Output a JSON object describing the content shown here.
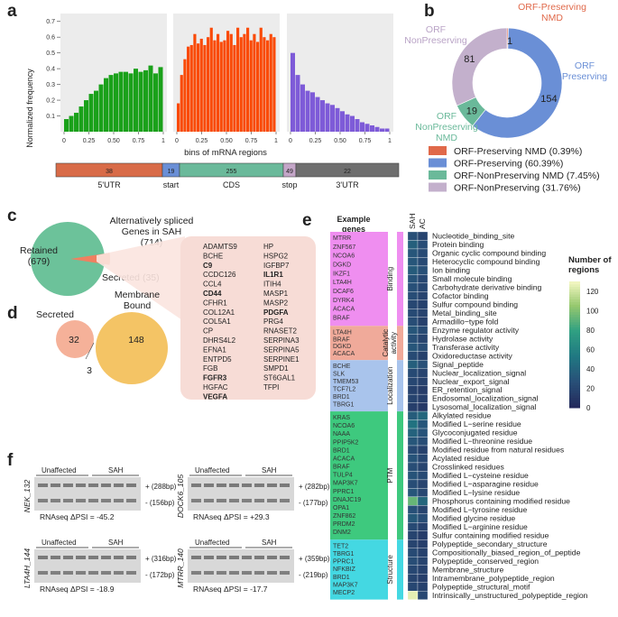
{
  "panel_labels": {
    "a": "a",
    "b": "b",
    "c": "c",
    "d": "d",
    "e": "e",
    "f": "f"
  },
  "panel_a": {
    "ylabel": "Normalized frequency",
    "xlabel": "bins of mRNA regions",
    "yticks": [
      "0.1",
      "0.2",
      "0.3",
      "0.4",
      "0.5",
      "0.6",
      "0.7"
    ],
    "xticks": [
      "0",
      "0.25",
      "0.50",
      "0.75",
      "1"
    ],
    "bar_segments": [
      {
        "label": "5'UTR",
        "count": "38",
        "color": "#d86b48"
      },
      {
        "label": "start",
        "count": "19",
        "color": "#6a8fd6"
      },
      {
        "label": "CDS",
        "count": "255",
        "color": "#6ab99a"
      },
      {
        "label": "stop",
        "count": "49",
        "color": "#c4a6c8"
      },
      {
        "label": "3'UTR",
        "count": "22",
        "color": "#6e6e6e"
      }
    ]
  },
  "chart_data": [
    {
      "type": "bar",
      "title": "",
      "region": "5'UTR",
      "color": "#1aa11a",
      "ylim": [
        0,
        0.75
      ],
      "values": [
        0.08,
        0.1,
        0.12,
        0.16,
        0.2,
        0.24,
        0.26,
        0.3,
        0.34,
        0.36,
        0.37,
        0.38,
        0.38,
        0.37,
        0.4,
        0.38,
        0.39,
        0.42,
        0.37,
        0.41
      ]
    },
    {
      "type": "bar",
      "title": "",
      "region": "CDS",
      "color": "#fa4a06",
      "ylim": [
        0,
        0.75
      ],
      "values": [
        0.18,
        0.36,
        0.46,
        0.54,
        0.55,
        0.62,
        0.56,
        0.59,
        0.55,
        0.6,
        0.66,
        0.58,
        0.62,
        0.57,
        0.58,
        0.64,
        0.62,
        0.55,
        0.66,
        0.6,
        0.62,
        0.66,
        0.58,
        0.62,
        0.57,
        0.66,
        0.6,
        0.58,
        0.62,
        0.6
      ]
    },
    {
      "type": "bar",
      "title": "",
      "region": "3'UTR",
      "color": "#7e5bd8",
      "ylim": [
        0,
        0.75
      ],
      "values": [
        0.5,
        0.36,
        0.3,
        0.26,
        0.25,
        0.22,
        0.2,
        0.18,
        0.17,
        0.15,
        0.13,
        0.11,
        0.1,
        0.08,
        0.06,
        0.05,
        0.04,
        0.03,
        0.02,
        0.02
      ]
    },
    {
      "type": "pie",
      "title": "",
      "labels": [
        "ORF-Preserving NMD",
        "ORF-Preserving",
        "ORF-NonPreserving NMD",
        "ORF-NonPreserving"
      ],
      "values": [
        1,
        154,
        19,
        81
      ],
      "colors": [
        "#e0694a",
        "#6a8fd6",
        "#6ab99a",
        "#c3b0cc"
      ]
    }
  ],
  "panel_b": {
    "labels": [
      {
        "text": "ORF-Preserving NMD",
        "color": "#e0694a"
      },
      {
        "text": "ORF Preserving",
        "color": "#6a8fd6"
      },
      {
        "text": "ORF NonPreserving NMD",
        "color": "#6ab99a"
      },
      {
        "text": "ORF NonPreserving",
        "color": "#b9a3c6"
      }
    ],
    "slice_values": [
      "1",
      "154",
      "19",
      "81"
    ],
    "legend": [
      {
        "text": "ORF-Preserving NMD (0.39%)",
        "color": "#e0694a"
      },
      {
        "text": "ORF-Preserving (60.39%)",
        "color": "#6a8fd6"
      },
      {
        "text": "ORF-NonPreserving NMD (7.45%)",
        "color": "#6ab99a"
      },
      {
        "text": "ORF-NonPreserving (31.76%)",
        "color": "#c3b0cc"
      }
    ]
  },
  "panel_c": {
    "title_line1": "Alternatively spliced",
    "title_line2": "Genes in SAH",
    "title_line3": "(714)",
    "retained_label": "Retained",
    "retained_count": "(679)",
    "secreted_label": "Secreted (35)",
    "genes_col1": [
      "ADAMTS9",
      "BCHE",
      "C9",
      "CCDC126",
      "CCL4",
      "CD44",
      "CFHR1",
      "COL12A1",
      "COL5A1",
      "CP",
      "DHRS4L2",
      "EFNA1",
      "ENTPD5",
      "FGB",
      "FGFR3",
      "HGFAC",
      "VEGFA"
    ],
    "genes_col2": [
      "HP",
      "HSPG2",
      "IGFBP7",
      "IL1R1",
      "ITIH4",
      "MASP1",
      "MASP2",
      "PDGFA",
      "PRG4",
      "RNASET2",
      "SERPINA3",
      "SERPINA5",
      "SERPINE1",
      "SMPD1",
      "ST6GAL1",
      "TFPI"
    ]
  },
  "panel_d": {
    "secreted_label": "Secreted",
    "secreted_count": "32",
    "membrane_label_1": "Membrane",
    "membrane_label_2": "Bound",
    "membrane_count": "148",
    "overlap_count": "3"
  },
  "panel_e": {
    "header": "Example genes",
    "col_labels": [
      "SAH",
      "AC"
    ],
    "legend_title_1": "Number of",
    "legend_title_2": "regions",
    "legend_ticks": [
      "120",
      "100",
      "80",
      "60",
      "40",
      "20",
      "0"
    ],
    "groups": [
      {
        "name": "Binding",
        "color": "#ef8ef0",
        "genes": [
          "MTRR",
          "ZNF567",
          "NCOA6",
          "DGKD",
          "IKZF1",
          "LTA4H",
          "DCAF6",
          "DYRK4",
          "ACACA",
          "BRAF"
        ],
        "terms": [
          "Nucleotide_binding_site",
          "Protein binding",
          "Organic cyclic compound binding",
          "Heterocyclic compound binding",
          "Ion binding",
          "Small molecule binding",
          "Carbohydrate derivative binding",
          "Cofactor binding",
          "Sulfur compound binding",
          "Metal_binding_site",
          "Armadillo−type fold"
        ]
      },
      {
        "name": "Catalytic activity",
        "color": "#f0aa9a",
        "genes": [
          "LTA4H",
          "BRAF",
          "DGKD",
          "ACACA"
        ],
        "terms": [
          "Enzyme regulator activity",
          "Hydrolase activity",
          "Transferase activity",
          "Oxidoreductase activity"
        ]
      },
      {
        "name": "Localization",
        "color": "#a9c4ec",
        "genes": [
          "BCHE",
          "SLK",
          "TMEM53",
          "TCF7L2",
          "BRD1",
          "TBRG1"
        ],
        "terms": [
          "Signal_peptide",
          "Nuclear_localization_signal",
          "Nuclear_export_signal",
          "ER_retention_signal",
          "Endosomal_localization_signal",
          "Lysosomal_localization_signal"
        ]
      },
      {
        "name": "PTM",
        "color": "#3ec97e",
        "genes": [
          "KRAS",
          "NCOA6",
          "NAAA",
          "PPIP5K2",
          "BRD1",
          "ACACA",
          "BRAF",
          "TULP4",
          "MAP3K7",
          "PPRC1",
          "DNAJC19",
          "OPA1",
          "ZNF862",
          "PRDM2",
          "DNM2"
        ],
        "terms": [
          "Alkylated residue",
          "Modified L−serine residue",
          "Glycoconjugated residue",
          "Modified L−threonine residue",
          "Modified residue from natural residues",
          "Acylated residue",
          "Crosslinked residues",
          "Modified L−cysteine residue",
          "Modified L−asparagine residue",
          "Modified L−lysine residue",
          "Phosphorus containing modified residue",
          "Modified L−tyrosine residue",
          "Modified glycine residue",
          "Modified L−arginine residue",
          "Sulfur containing modified residue"
        ]
      },
      {
        "name": "Structure",
        "color": "#44d8e2",
        "genes": [
          "TET2",
          "TBRG1",
          "PPRC1",
          "NFKBIZ",
          "BRD1",
          "MAP3K7",
          "MECP2"
        ],
        "terms": [
          "Polypeptide_secondary_structure",
          "Compositionally_biased_region_of_peptide",
          "Polypeptide_conserved_region",
          "Membrane_structure",
          "Intramembrane_polypeptide_region",
          "Polypeptide_structural_motif",
          "Intrinsically_unstructured_polypeptide_region"
        ]
      }
    ],
    "heat_values": [
      [
        25,
        18
      ],
      [
        36,
        24
      ],
      [
        30,
        22
      ],
      [
        30,
        22
      ],
      [
        33,
        26
      ],
      [
        28,
        20
      ],
      [
        26,
        20
      ],
      [
        24,
        18
      ],
      [
        20,
        16
      ],
      [
        22,
        17
      ],
      [
        24,
        15
      ],
      [
        30,
        22
      ],
      [
        26,
        18
      ],
      [
        30,
        24
      ],
      [
        22,
        16
      ],
      [
        36,
        26
      ],
      [
        22,
        18
      ],
      [
        20,
        16
      ],
      [
        16,
        12
      ],
      [
        18,
        14
      ],
      [
        14,
        10
      ],
      [
        34,
        40
      ],
      [
        48,
        30
      ],
      [
        38,
        28
      ],
      [
        30,
        24
      ],
      [
        22,
        16
      ],
      [
        28,
        20
      ],
      [
        24,
        18
      ],
      [
        28,
        22
      ],
      [
        24,
        18
      ],
      [
        30,
        20
      ],
      [
        92,
        40
      ],
      [
        26,
        18
      ],
      [
        32,
        24
      ],
      [
        22,
        16
      ],
      [
        18,
        12
      ],
      [
        18,
        14
      ],
      [
        22,
        16
      ],
      [
        24,
        18
      ],
      [
        20,
        16
      ],
      [
        18,
        14
      ],
      [
        20,
        16
      ],
      [
        124,
        20
      ]
    ]
  },
  "panel_f": {
    "gels": [
      {
        "gene": "NEK_132",
        "g1": "Unaffected",
        "g2": "SAH",
        "upper": "+ (288bp)",
        "lower": "- (156bp)",
        "psi": "RNAseq ΔPSI = -45.2"
      },
      {
        "gene": "DOCK6_105",
        "g1": "Unaffected",
        "g2": "SAH",
        "upper": "+ (282bp)",
        "lower": "- (177bp)",
        "psi": "RNAseq ΔPSI = +29.3"
      },
      {
        "gene": "LTA4H_144",
        "g1": "Unaffected",
        "g2": "SAH",
        "upper": "+ (316bp)",
        "lower": "- (172bp)",
        "psi": "RNAseq ΔPSI = -18.9"
      },
      {
        "gene": "MTRR_140",
        "g1": "Unaffected",
        "g2": "SAH",
        "upper": "+ (359bp)",
        "lower": "- (219bp)",
        "psi": "RNAseq ΔPSI = -17.7"
      }
    ]
  }
}
